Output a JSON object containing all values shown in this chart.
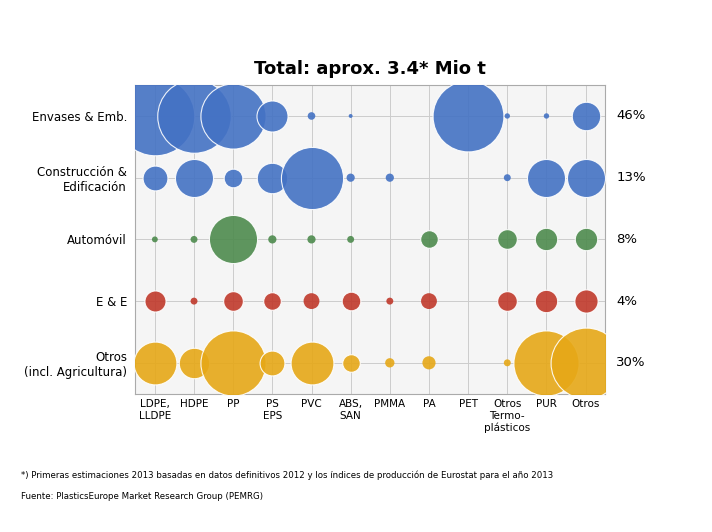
{
  "title": "Total: aprox. 3.4* Mio t",
  "footnote1": "*) Primeras estimaciones 2013 basadas en datos definitivos 2012 y los índices de producción de Eurostat para el año 2013",
  "footnote2": "Fuente: PlasticsEurope Market Research Group (PEMRG)",
  "x_labels": [
    "LDPE,\nLLDPE",
    "HDPE",
    "PP",
    "PS\nEPS",
    "PVC",
    "ABS,\nSAN",
    "PMMA",
    "PA",
    "PET",
    "Otros\nTermo-\nplásticos",
    "PUR",
    "Otros"
  ],
  "y_labels_display": [
    "Envases & Emb.",
    "Construcción &\nEdificación",
    "Automóvil",
    "E & E",
    "Otros\n(incl. Agricultura)"
  ],
  "percentages": [
    "46%",
    "13%",
    "8%",
    "4%",
    "30%"
  ],
  "colors": {
    "blue": "#4472C4",
    "green": "#4E8B4E",
    "red": "#C0392B",
    "orange": "#E6A817"
  },
  "row_colors": [
    "blue",
    "blue",
    "green",
    "red",
    "orange"
  ],
  "bubbles": [
    {
      "row": 0,
      "col": 0,
      "size": 3200
    },
    {
      "row": 0,
      "col": 1,
      "size": 2800
    },
    {
      "row": 0,
      "col": 2,
      "size": 2200
    },
    {
      "row": 0,
      "col": 3,
      "size": 500
    },
    {
      "row": 0,
      "col": 4,
      "size": 30
    },
    {
      "row": 0,
      "col": 5,
      "size": 8
    },
    {
      "row": 0,
      "col": 8,
      "size": 2600
    },
    {
      "row": 0,
      "col": 9,
      "size": 15
    },
    {
      "row": 0,
      "col": 10,
      "size": 15
    },
    {
      "row": 0,
      "col": 11,
      "size": 420
    },
    {
      "row": 1,
      "col": 0,
      "size": 320
    },
    {
      "row": 1,
      "col": 1,
      "size": 750
    },
    {
      "row": 1,
      "col": 2,
      "size": 180
    },
    {
      "row": 1,
      "col": 3,
      "size": 480
    },
    {
      "row": 1,
      "col": 4,
      "size": 2000
    },
    {
      "row": 1,
      "col": 5,
      "size": 35
    },
    {
      "row": 1,
      "col": 6,
      "size": 35
    },
    {
      "row": 1,
      "col": 9,
      "size": 25
    },
    {
      "row": 1,
      "col": 10,
      "size": 750
    },
    {
      "row": 1,
      "col": 11,
      "size": 750
    },
    {
      "row": 2,
      "col": 0,
      "size": 18
    },
    {
      "row": 2,
      "col": 1,
      "size": 25
    },
    {
      "row": 2,
      "col": 2,
      "size": 1200
    },
    {
      "row": 2,
      "col": 3,
      "size": 35
    },
    {
      "row": 2,
      "col": 4,
      "size": 35
    },
    {
      "row": 2,
      "col": 5,
      "size": 25
    },
    {
      "row": 2,
      "col": 7,
      "size": 160
    },
    {
      "row": 2,
      "col": 9,
      "size": 200
    },
    {
      "row": 2,
      "col": 10,
      "size": 260
    },
    {
      "row": 2,
      "col": 11,
      "size": 260
    },
    {
      "row": 3,
      "col": 0,
      "size": 230
    },
    {
      "row": 3,
      "col": 1,
      "size": 25
    },
    {
      "row": 3,
      "col": 2,
      "size": 200
    },
    {
      "row": 3,
      "col": 3,
      "size": 160
    },
    {
      "row": 3,
      "col": 4,
      "size": 130
    },
    {
      "row": 3,
      "col": 5,
      "size": 180
    },
    {
      "row": 3,
      "col": 6,
      "size": 25
    },
    {
      "row": 3,
      "col": 7,
      "size": 130
    },
    {
      "row": 3,
      "col": 9,
      "size": 200
    },
    {
      "row": 3,
      "col": 10,
      "size": 260
    },
    {
      "row": 3,
      "col": 11,
      "size": 280
    },
    {
      "row": 4,
      "col": 0,
      "size": 950
    },
    {
      "row": 4,
      "col": 1,
      "size": 480
    },
    {
      "row": 4,
      "col": 2,
      "size": 2200
    },
    {
      "row": 4,
      "col": 3,
      "size": 320
    },
    {
      "row": 4,
      "col": 4,
      "size": 950
    },
    {
      "row": 4,
      "col": 5,
      "size": 160
    },
    {
      "row": 4,
      "col": 6,
      "size": 45
    },
    {
      "row": 4,
      "col": 7,
      "size": 90
    },
    {
      "row": 4,
      "col": 9,
      "size": 25
    },
    {
      "row": 4,
      "col": 10,
      "size": 2200
    },
    {
      "row": 4,
      "col": 11,
      "size": 2600
    }
  ],
  "figsize": [
    7.12,
    5.32
  ],
  "dpi": 100,
  "grid_color": "#cccccc",
  "bg_color": "#ffffff",
  "plot_bg_color": "#f5f5f5"
}
